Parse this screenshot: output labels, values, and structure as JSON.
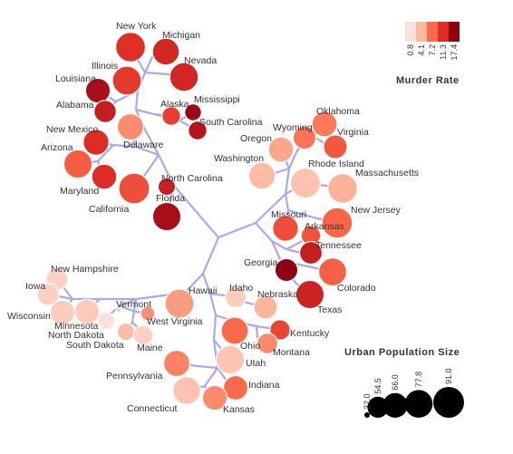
{
  "chart_data": {
    "type": "dendrogram",
    "title": "",
    "color_legend": {
      "title": "Murder Rate",
      "ticks": [
        "0.8",
        "4.1",
        "7.2",
        "11.3",
        "17.4"
      ],
      "colors": [
        "#fde0dd",
        "#fcbba1",
        "#fb6a4a",
        "#de2d26",
        "#8b0012"
      ]
    },
    "size_legend": {
      "title": "Urban Population Size",
      "ticks": [
        "32.0",
        "54.5",
        "66.0",
        "77.8",
        "91.0"
      ]
    },
    "states": [
      {
        "name": "New York",
        "murder": 11.1,
        "urban": 86
      },
      {
        "name": "Michigan",
        "murder": 12.1,
        "urban": 74
      },
      {
        "name": "Nevada",
        "murder": 12.2,
        "urban": 81
      },
      {
        "name": "Illinois",
        "murder": 10.4,
        "urban": 83
      },
      {
        "name": "Louisiana",
        "murder": 15.4,
        "urban": 66
      },
      {
        "name": "Alabama",
        "murder": 13.2,
        "urban": 58
      },
      {
        "name": "Alaska",
        "murder": 10.0,
        "urban": 48
      },
      {
        "name": "Mississippi",
        "murder": 16.1,
        "urban": 44
      },
      {
        "name": "South Carolina",
        "murder": 14.4,
        "urban": 48
      },
      {
        "name": "New Mexico",
        "murder": 11.4,
        "urban": 70
      },
      {
        "name": "Delaware",
        "murder": 5.9,
        "urban": 72
      },
      {
        "name": "Arizona",
        "murder": 8.1,
        "urban": 80
      },
      {
        "name": "Maryland",
        "murder": 11.3,
        "urban": 67
      },
      {
        "name": "California",
        "murder": 9.0,
        "urban": 91
      },
      {
        "name": "North Carolina",
        "murder": 13.0,
        "urban": 45
      },
      {
        "name": "Florida",
        "murder": 15.4,
        "urban": 80
      },
      {
        "name": "Oklahoma",
        "murder": 6.6,
        "urban": 68
      },
      {
        "name": "Wyoming",
        "murder": 6.8,
        "urban": 60
      },
      {
        "name": "Virginia",
        "murder": 8.5,
        "urban": 63
      },
      {
        "name": "Oregon",
        "murder": 4.9,
        "urban": 67
      },
      {
        "name": "Washington",
        "murder": 4.0,
        "urban": 73
      },
      {
        "name": "Rhode Island",
        "murder": 3.4,
        "urban": 87
      },
      {
        "name": "Massachusetts",
        "murder": 4.4,
        "urban": 85
      },
      {
        "name": "New Jersey",
        "murder": 7.4,
        "urban": 89
      },
      {
        "name": "Missouri",
        "murder": 9.0,
        "urban": 70
      },
      {
        "name": "Arkansas",
        "murder": 8.8,
        "urban": 50
      },
      {
        "name": "Tennessee",
        "murder": 13.2,
        "urban": 59
      },
      {
        "name": "Georgia",
        "murder": 17.4,
        "urban": 60
      },
      {
        "name": "Colorado",
        "murder": 7.9,
        "urban": 78
      },
      {
        "name": "Texas",
        "murder": 12.7,
        "urban": 80
      },
      {
        "name": "New Hampshire",
        "murder": 2.1,
        "urban": 56
      },
      {
        "name": "Iowa",
        "murder": 2.2,
        "urban": 57
      },
      {
        "name": "Wisconsin",
        "murder": 2.6,
        "urban": 66
      },
      {
        "name": "Minnesota",
        "murder": 2.7,
        "urban": 66
      },
      {
        "name": "Vermont",
        "murder": 2.2,
        "urban": 32
      },
      {
        "name": "North Dakota",
        "murder": 0.8,
        "urban": 44
      },
      {
        "name": "South Dakota",
        "murder": 3.8,
        "urban": 45
      },
      {
        "name": "West Virginia",
        "murder": 5.7,
        "urban": 39
      },
      {
        "name": "Maine",
        "murder": 2.1,
        "urban": 51
      },
      {
        "name": "Hawaii",
        "murder": 5.3,
        "urban": 83
      },
      {
        "name": "Idaho",
        "murder": 2.6,
        "urban": 54
      },
      {
        "name": "Nebraska",
        "murder": 4.3,
        "urban": 62
      },
      {
        "name": "Kentucky",
        "murder": 9.7,
        "urban": 52
      },
      {
        "name": "Ohio",
        "murder": 7.3,
        "urban": 75
      },
      {
        "name": "Montana",
        "murder": 6.0,
        "urban": 53
      },
      {
        "name": "Utah",
        "murder": 3.2,
        "urban": 80
      },
      {
        "name": "Pennsylvania",
        "murder": 6.3,
        "urban": 72
      },
      {
        "name": "Indiana",
        "murder": 7.2,
        "urban": 65
      },
      {
        "name": "Connecticut",
        "murder": 3.3,
        "urban": 77
      },
      {
        "name": "Kansas",
        "murder": 6.0,
        "urban": 66
      }
    ]
  }
}
